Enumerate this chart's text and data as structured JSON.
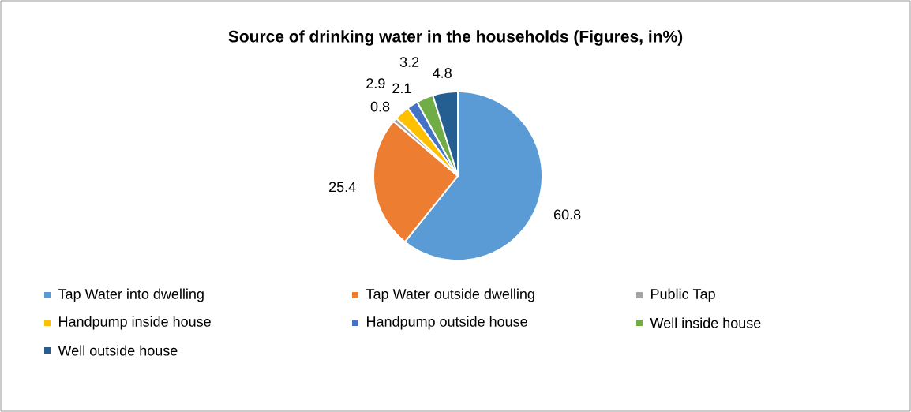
{
  "chart_data": {
    "type": "pie",
    "title": "Source of drinking water in the households (Figures, in%)",
    "categories": [
      "Tap Water into dwelling",
      "Tap Water outside dwelling",
      "Public Tap",
      "Handpump inside house",
      "Handpump outside house",
      "Well inside house",
      "Well outside house"
    ],
    "values": [
      60.8,
      25.4,
      0.8,
      2.9,
      2.1,
      3.2,
      4.8
    ],
    "colors": [
      "#5b9bd5",
      "#ed7d31",
      "#a5a5a5",
      "#ffc000",
      "#4472c4",
      "#70ad47",
      "#255e91"
    ],
    "data_labels": true,
    "legend": "bottom"
  }
}
